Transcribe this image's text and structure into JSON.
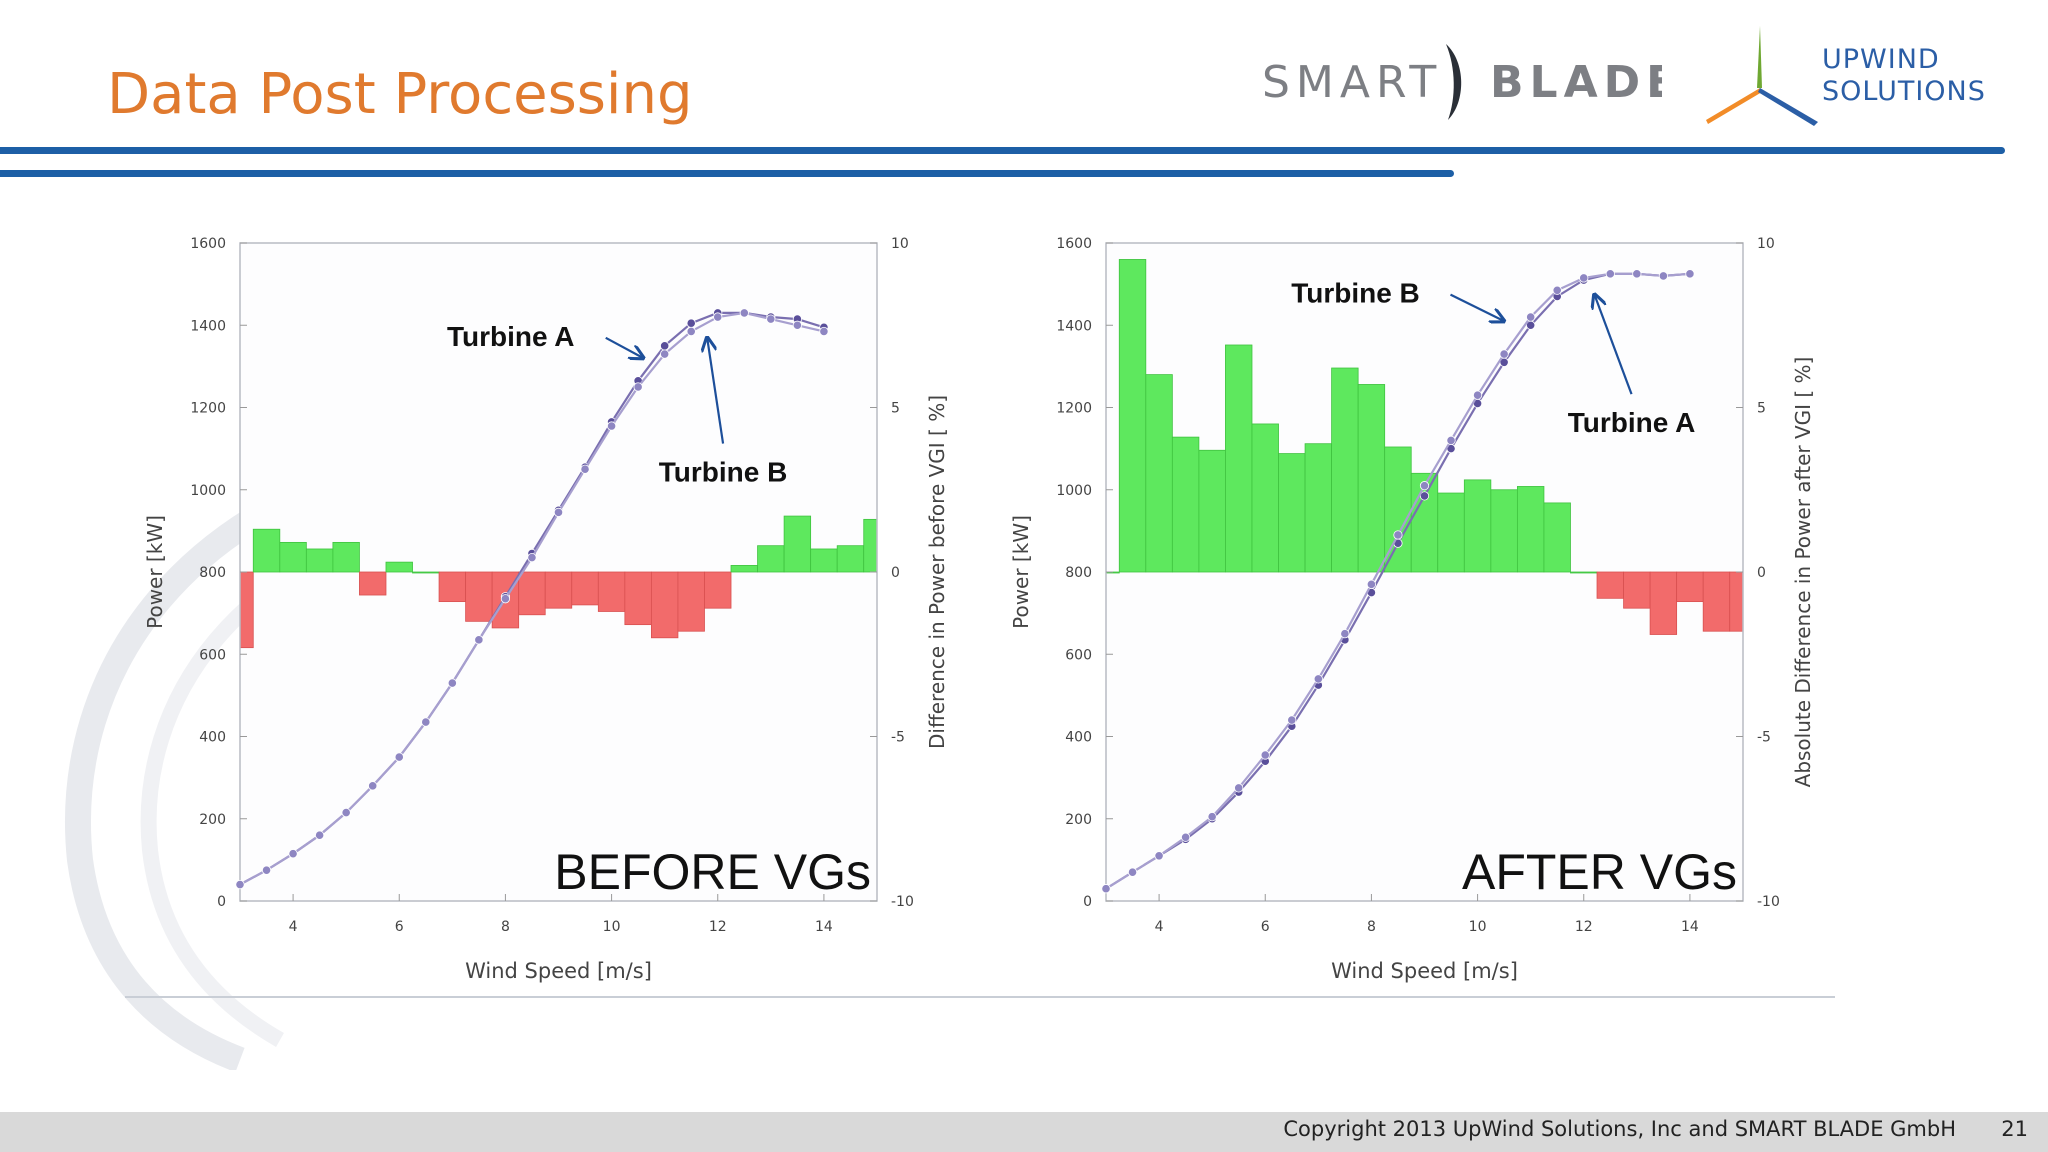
{
  "slide": {
    "title": "Data Post Processing",
    "copyright": "Copyright 2013 UpWind Solutions, Inc and SMART BLADE GmbH",
    "page_number": "21",
    "logos": {
      "smart_blade_left": "SMART",
      "smart_blade_right": "BLADE",
      "upwind_line1": "UPWIND",
      "upwind_line2": "SOLUTIONS"
    },
    "colors": {
      "title": "#e07a2e",
      "rule": "#1d5fa6",
      "positive_bar": "#5ee85e",
      "negative_bar": "#f26b6b",
      "curve": "#7a6fb0",
      "arrow": "#1d4f9a"
    }
  },
  "chart_data": [
    {
      "type": "bar",
      "overlay_title": "BEFORE VGs",
      "xlabel": "Wind Speed [m/s]",
      "ylabel": "Power [kW]",
      "y2label": "Difference in Power before VGI [ %]",
      "xlim": [
        3,
        15
      ],
      "ylim": [
        0,
        1600
      ],
      "y2lim": [
        -10,
        10
      ],
      "x_ticks": [
        "4",
        "6",
        "8",
        "10",
        "12",
        "14"
      ],
      "y_ticks": [
        "0",
        "200",
        "400",
        "600",
        "800",
        "1000",
        "1200",
        "1400",
        "1600"
      ],
      "y2_ticks": [
        "-10",
        "-5",
        "0",
        "5",
        "10"
      ],
      "grid": false,
      "bars": [
        {
          "x": 3.0,
          "value": -2.3
        },
        {
          "x": 3.5,
          "value": 1.3
        },
        {
          "x": 4.0,
          "value": 0.9
        },
        {
          "x": 4.5,
          "value": 0.7
        },
        {
          "x": 5.0,
          "value": 0.9
        },
        {
          "x": 5.5,
          "value": -0.7
        },
        {
          "x": 6.0,
          "value": 0.3
        },
        {
          "x": 6.5,
          "value": 0.0
        },
        {
          "x": 7.0,
          "value": -0.9
        },
        {
          "x": 7.5,
          "value": -1.5
        },
        {
          "x": 8.0,
          "value": -1.7
        },
        {
          "x": 8.5,
          "value": -1.3
        },
        {
          "x": 9.0,
          "value": -1.1
        },
        {
          "x": 9.5,
          "value": -1.0
        },
        {
          "x": 10.0,
          "value": -1.2
        },
        {
          "x": 10.5,
          "value": -1.6
        },
        {
          "x": 11.0,
          "value": -2.0
        },
        {
          "x": 11.5,
          "value": -1.8
        },
        {
          "x": 12.0,
          "value": -1.1
        },
        {
          "x": 12.5,
          "value": 0.2
        },
        {
          "x": 13.0,
          "value": 0.8
        },
        {
          "x": 13.5,
          "value": 1.7
        },
        {
          "x": 14.0,
          "value": 0.7
        },
        {
          "x": 14.5,
          "value": 0.8
        },
        {
          "x": 15.0,
          "value": 1.6
        }
      ],
      "series": [
        {
          "name": "Turbine A",
          "x": [
            3.0,
            3.5,
            4.0,
            4.5,
            5.0,
            5.5,
            6.0,
            6.5,
            7.0,
            7.5,
            8.0,
            8.5,
            9.0,
            9.5,
            10.0,
            10.5,
            11.0,
            11.5,
            12.0,
            12.5,
            13.0,
            13.5,
            14.0
          ],
          "values": [
            40,
            75,
            115,
            160,
            215,
            280,
            350,
            435,
            530,
            635,
            740,
            845,
            950,
            1055,
            1165,
            1265,
            1350,
            1405,
            1430,
            1430,
            1420,
            1415,
            1395
          ]
        },
        {
          "name": "Turbine B",
          "x": [
            3.0,
            3.5,
            4.0,
            4.5,
            5.0,
            5.5,
            6.0,
            6.5,
            7.0,
            7.5,
            8.0,
            8.5,
            9.0,
            9.5,
            10.0,
            10.5,
            11.0,
            11.5,
            12.0,
            12.5,
            13.0,
            13.5,
            14.0
          ],
          "values": [
            40,
            75,
            115,
            160,
            215,
            280,
            350,
            435,
            530,
            635,
            735,
            835,
            945,
            1050,
            1155,
            1250,
            1330,
            1385,
            1420,
            1430,
            1415,
            1400,
            1385
          ]
        }
      ],
      "annotations": [
        {
          "text": "Turbine A",
          "x": 8.1,
          "y": 1350,
          "target_x": 10.6,
          "target_y": 1320
        },
        {
          "text": "Turbine B",
          "x": 12.1,
          "y": 1020,
          "target_x": 11.8,
          "target_y": 1370
        }
      ]
    },
    {
      "type": "bar",
      "overlay_title": "AFTER VGs",
      "xlabel": "Wind Speed [m/s]",
      "ylabel": "Power [kW]",
      "y2label": "Absolute Difference in Power after VGI [ %]",
      "xlim": [
        3,
        15
      ],
      "ylim": [
        0,
        1600
      ],
      "y2lim": [
        -10,
        10
      ],
      "x_ticks": [
        "4",
        "6",
        "8",
        "10",
        "12",
        "14"
      ],
      "y_ticks": [
        "0",
        "200",
        "400",
        "600",
        "800",
        "1000",
        "1200",
        "1400",
        "1600"
      ],
      "y2_ticks": [
        "-10",
        "-5",
        "0",
        "5",
        "10"
      ],
      "grid": false,
      "bars": [
        {
          "x": 3.0,
          "value": 0.0
        },
        {
          "x": 3.5,
          "value": 9.5
        },
        {
          "x": 4.0,
          "value": 6.0
        },
        {
          "x": 4.5,
          "value": 4.1
        },
        {
          "x": 5.0,
          "value": 3.7
        },
        {
          "x": 5.5,
          "value": 6.9
        },
        {
          "x": 6.0,
          "value": 4.5
        },
        {
          "x": 6.5,
          "value": 3.6
        },
        {
          "x": 7.0,
          "value": 3.9
        },
        {
          "x": 7.5,
          "value": 6.2
        },
        {
          "x": 8.0,
          "value": 5.7
        },
        {
          "x": 8.5,
          "value": 3.8
        },
        {
          "x": 9.0,
          "value": 3.0
        },
        {
          "x": 9.5,
          "value": 2.4
        },
        {
          "x": 10.0,
          "value": 2.8
        },
        {
          "x": 10.5,
          "value": 2.5
        },
        {
          "x": 11.0,
          "value": 2.6
        },
        {
          "x": 11.5,
          "value": 2.1
        },
        {
          "x": 12.0,
          "value": 0.0
        },
        {
          "x": 12.5,
          "value": -0.8
        },
        {
          "x": 13.0,
          "value": -1.1
        },
        {
          "x": 13.5,
          "value": -1.9
        },
        {
          "x": 14.0,
          "value": -0.9
        },
        {
          "x": 14.5,
          "value": -1.8
        },
        {
          "x": 15.0,
          "value": -1.8
        }
      ],
      "series": [
        {
          "name": "Turbine A",
          "x": [
            3.0,
            3.5,
            4.0,
            4.5,
            5.0,
            5.5,
            6.0,
            6.5,
            7.0,
            7.5,
            8.0,
            8.5,
            9.0,
            9.5,
            10.0,
            10.5,
            11.0,
            11.5,
            12.0,
            12.5,
            13.0,
            13.5,
            14.0
          ],
          "values": [
            30,
            70,
            110,
            150,
            200,
            265,
            340,
            425,
            525,
            635,
            750,
            870,
            985,
            1100,
            1210,
            1310,
            1400,
            1470,
            1510,
            1525,
            1525,
            1520,
            1525
          ]
        },
        {
          "name": "Turbine B",
          "x": [
            3.0,
            3.5,
            4.0,
            4.5,
            5.0,
            5.5,
            6.0,
            6.5,
            7.0,
            7.5,
            8.0,
            8.5,
            9.0,
            9.5,
            10.0,
            10.5,
            11.0,
            11.5,
            12.0,
            12.5,
            13.0,
            13.5,
            14.0
          ],
          "values": [
            30,
            70,
            110,
            155,
            205,
            275,
            355,
            440,
            540,
            650,
            770,
            890,
            1010,
            1120,
            1230,
            1330,
            1420,
            1485,
            1515,
            1525,
            1525,
            1520,
            1525
          ]
        }
      ],
      "annotations": [
        {
          "text": "Turbine B",
          "x": 7.7,
          "y": 1455,
          "target_x": 10.5,
          "target_y": 1410
        },
        {
          "text": "Turbine A",
          "x": 12.9,
          "y": 1140,
          "target_x": 12.2,
          "target_y": 1475
        }
      ]
    }
  ]
}
